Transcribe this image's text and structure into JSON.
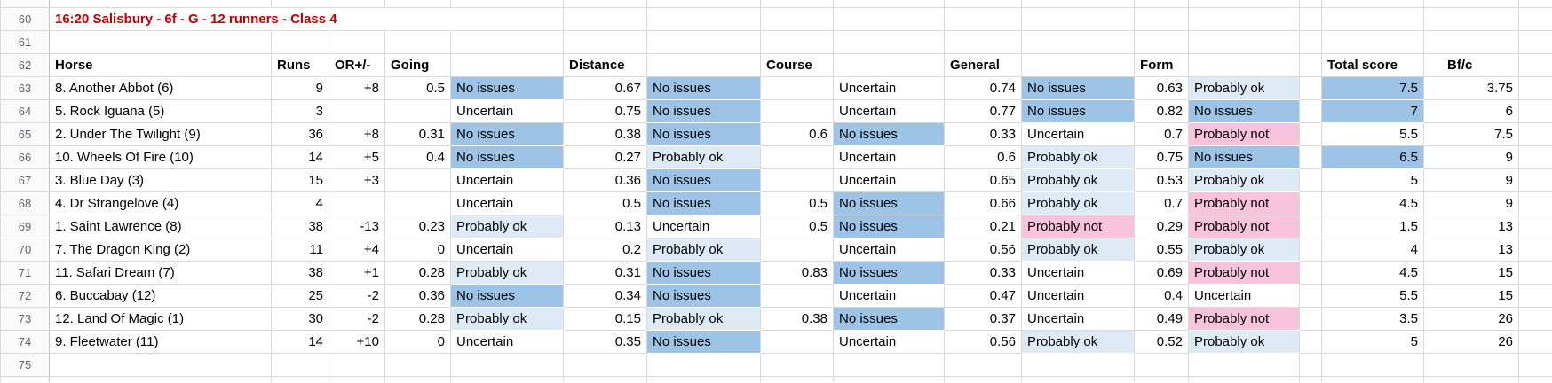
{
  "sheet": {
    "title": "16:20 Salisbury - 6f - G - 12 runners - Class 4",
    "gutter": {
      "r60": "60",
      "r61": "61",
      "r62": "62",
      "r75": "75"
    },
    "headers": {
      "horse": "Horse",
      "runs": "Runs",
      "or": "OR+/-",
      "going": "Going",
      "distance": "Distance",
      "course": "Course",
      "general": "General",
      "form": "Form",
      "total": "Total score",
      "bfc": "Bf/c"
    },
    "status_values": [
      "No issues",
      "Probably ok",
      "Uncertain",
      "Probably not"
    ],
    "colors": {
      "no_issues_fill": "#9dc3e6",
      "probably_ok_fill": "#deebf7",
      "probably_not_fill": "#fac3dc",
      "total_highlight_fill": "#9dc3e6",
      "title_text": "#c00000"
    },
    "rows": [
      {
        "n": "63",
        "horse": "8. Another Abbot (6)",
        "runs": "9",
        "or": "+8",
        "going": {
          "v": "0.5",
          "s": "No issues",
          "c": "blue"
        },
        "distance": {
          "v": "0.67",
          "s": "No issues",
          "c": "blue"
        },
        "course": {
          "v": "",
          "s": "Uncertain",
          "c": "none"
        },
        "general": {
          "v": "0.74",
          "s": "No issues",
          "c": "blue"
        },
        "form": {
          "v": "0.63",
          "s": "Probably ok",
          "c": "light"
        },
        "total": {
          "v": "7.5",
          "c": "blue"
        },
        "bfc": "3.75"
      },
      {
        "n": "64",
        "horse": "5. Rock Iguana (5)",
        "runs": "3",
        "or": "",
        "going": {
          "v": "",
          "s": "Uncertain",
          "c": "none"
        },
        "distance": {
          "v": "0.75",
          "s": "No issues",
          "c": "blue"
        },
        "course": {
          "v": "",
          "s": "Uncertain",
          "c": "none"
        },
        "general": {
          "v": "0.77",
          "s": "No issues",
          "c": "blue"
        },
        "form": {
          "v": "0.82",
          "s": "No issues",
          "c": "blue"
        },
        "total": {
          "v": "7",
          "c": "blue"
        },
        "bfc": "6"
      },
      {
        "n": "65",
        "horse": "2. Under The Twilight (9)",
        "runs": "36",
        "or": "+8",
        "going": {
          "v": "0.31",
          "s": "No issues",
          "c": "blue"
        },
        "distance": {
          "v": "0.38",
          "s": "No issues",
          "c": "blue"
        },
        "course": {
          "v": "0.6",
          "s": "No issues",
          "c": "blue"
        },
        "general": {
          "v": "0.33",
          "s": "Uncertain",
          "c": "none"
        },
        "form": {
          "v": "0.7",
          "s": "Probably not",
          "c": "pink"
        },
        "total": {
          "v": "5.5",
          "c": "none"
        },
        "bfc": "7.5"
      },
      {
        "n": "66",
        "horse": "10. Wheels Of Fire (10)",
        "runs": "14",
        "or": "+5",
        "going": {
          "v": "0.4",
          "s": "No issues",
          "c": "blue"
        },
        "distance": {
          "v": "0.27",
          "s": "Probably ok",
          "c": "light"
        },
        "course": {
          "v": "",
          "s": "Uncertain",
          "c": "none"
        },
        "general": {
          "v": "0.6",
          "s": "Probably ok",
          "c": "light"
        },
        "form": {
          "v": "0.75",
          "s": "No issues",
          "c": "blue"
        },
        "total": {
          "v": "6.5",
          "c": "blue"
        },
        "bfc": "9"
      },
      {
        "n": "67",
        "horse": "3. Blue Day (3)",
        "runs": "15",
        "or": "+3",
        "going": {
          "v": "",
          "s": "Uncertain",
          "c": "none"
        },
        "distance": {
          "v": "0.36",
          "s": "No issues",
          "c": "blue"
        },
        "course": {
          "v": "",
          "s": "Uncertain",
          "c": "none"
        },
        "general": {
          "v": "0.65",
          "s": "Probably ok",
          "c": "light"
        },
        "form": {
          "v": "0.53",
          "s": "Probably ok",
          "c": "light"
        },
        "total": {
          "v": "5",
          "c": "none"
        },
        "bfc": "9"
      },
      {
        "n": "68",
        "horse": "4. Dr Strangelove (4)",
        "runs": "4",
        "or": "",
        "going": {
          "v": "",
          "s": "Uncertain",
          "c": "none"
        },
        "distance": {
          "v": "0.5",
          "s": "No issues",
          "c": "blue"
        },
        "course": {
          "v": "0.5",
          "s": "No issues",
          "c": "blue"
        },
        "general": {
          "v": "0.66",
          "s": "Probably ok",
          "c": "light"
        },
        "form": {
          "v": "0.7",
          "s": "Probably not",
          "c": "pink"
        },
        "total": {
          "v": "4.5",
          "c": "none"
        },
        "bfc": "9"
      },
      {
        "n": "69",
        "horse": "1. Saint Lawrence (8)",
        "runs": "38",
        "or": "-13",
        "going": {
          "v": "0.23",
          "s": "Probably ok",
          "c": "light"
        },
        "distance": {
          "v": "0.13",
          "s": "Uncertain",
          "c": "none"
        },
        "course": {
          "v": "0.5",
          "s": "No issues",
          "c": "blue"
        },
        "general": {
          "v": "0.21",
          "s": "Probably not",
          "c": "pink"
        },
        "form": {
          "v": "0.29",
          "s": "Probably not",
          "c": "pink"
        },
        "total": {
          "v": "1.5",
          "c": "none"
        },
        "bfc": "13"
      },
      {
        "n": "70",
        "horse": "7. The Dragon King (2)",
        "runs": "11",
        "or": "+4",
        "going": {
          "v": "0",
          "s": "Uncertain",
          "c": "none"
        },
        "distance": {
          "v": "0.2",
          "s": "Probably ok",
          "c": "light"
        },
        "course": {
          "v": "",
          "s": "Uncertain",
          "c": "none"
        },
        "general": {
          "v": "0.56",
          "s": "Probably ok",
          "c": "light"
        },
        "form": {
          "v": "0.55",
          "s": "Probably ok",
          "c": "light"
        },
        "total": {
          "v": "4",
          "c": "none"
        },
        "bfc": "13"
      },
      {
        "n": "71",
        "horse": "11. Safari Dream (7)",
        "runs": "38",
        "or": "+1",
        "going": {
          "v": "0.28",
          "s": "Probably ok",
          "c": "light"
        },
        "distance": {
          "v": "0.31",
          "s": "No issues",
          "c": "blue"
        },
        "course": {
          "v": "0.83",
          "s": "No issues",
          "c": "blue"
        },
        "general": {
          "v": "0.33",
          "s": "Uncertain",
          "c": "none"
        },
        "form": {
          "v": "0.69",
          "s": "Probably not",
          "c": "pink"
        },
        "total": {
          "v": "4.5",
          "c": "none"
        },
        "bfc": "15"
      },
      {
        "n": "72",
        "horse": "6. Buccabay (12)",
        "runs": "25",
        "or": "-2",
        "going": {
          "v": "0.36",
          "s": "No issues",
          "c": "blue"
        },
        "distance": {
          "v": "0.34",
          "s": "No issues",
          "c": "blue"
        },
        "course": {
          "v": "",
          "s": "Uncertain",
          "c": "none"
        },
        "general": {
          "v": "0.47",
          "s": "Uncertain",
          "c": "none"
        },
        "form": {
          "v": "0.4",
          "s": "Uncertain",
          "c": "none"
        },
        "total": {
          "v": "5.5",
          "c": "none"
        },
        "bfc": "15"
      },
      {
        "n": "73",
        "horse": "12. Land Of Magic (1)",
        "runs": "30",
        "or": "-2",
        "going": {
          "v": "0.28",
          "s": "Probably ok",
          "c": "light"
        },
        "distance": {
          "v": "0.15",
          "s": "Probably ok",
          "c": "light"
        },
        "course": {
          "v": "0.38",
          "s": "No issues",
          "c": "blue"
        },
        "general": {
          "v": "0.37",
          "s": "Uncertain",
          "c": "none"
        },
        "form": {
          "v": "0.49",
          "s": "Probably not",
          "c": "pink"
        },
        "total": {
          "v": "3.5",
          "c": "none"
        },
        "bfc": "26"
      },
      {
        "n": "74",
        "horse": "9. Fleetwater (11)",
        "runs": "14",
        "or": "+10",
        "going": {
          "v": "0",
          "s": "Uncertain",
          "c": "none"
        },
        "distance": {
          "v": "0.35",
          "s": "No issues",
          "c": "blue"
        },
        "course": {
          "v": "",
          "s": "Uncertain",
          "c": "none"
        },
        "general": {
          "v": "0.56",
          "s": "Probably ok",
          "c": "light"
        },
        "form": {
          "v": "0.52",
          "s": "Probably ok",
          "c": "light"
        },
        "total": {
          "v": "5",
          "c": "none"
        },
        "bfc": "26"
      }
    ]
  }
}
